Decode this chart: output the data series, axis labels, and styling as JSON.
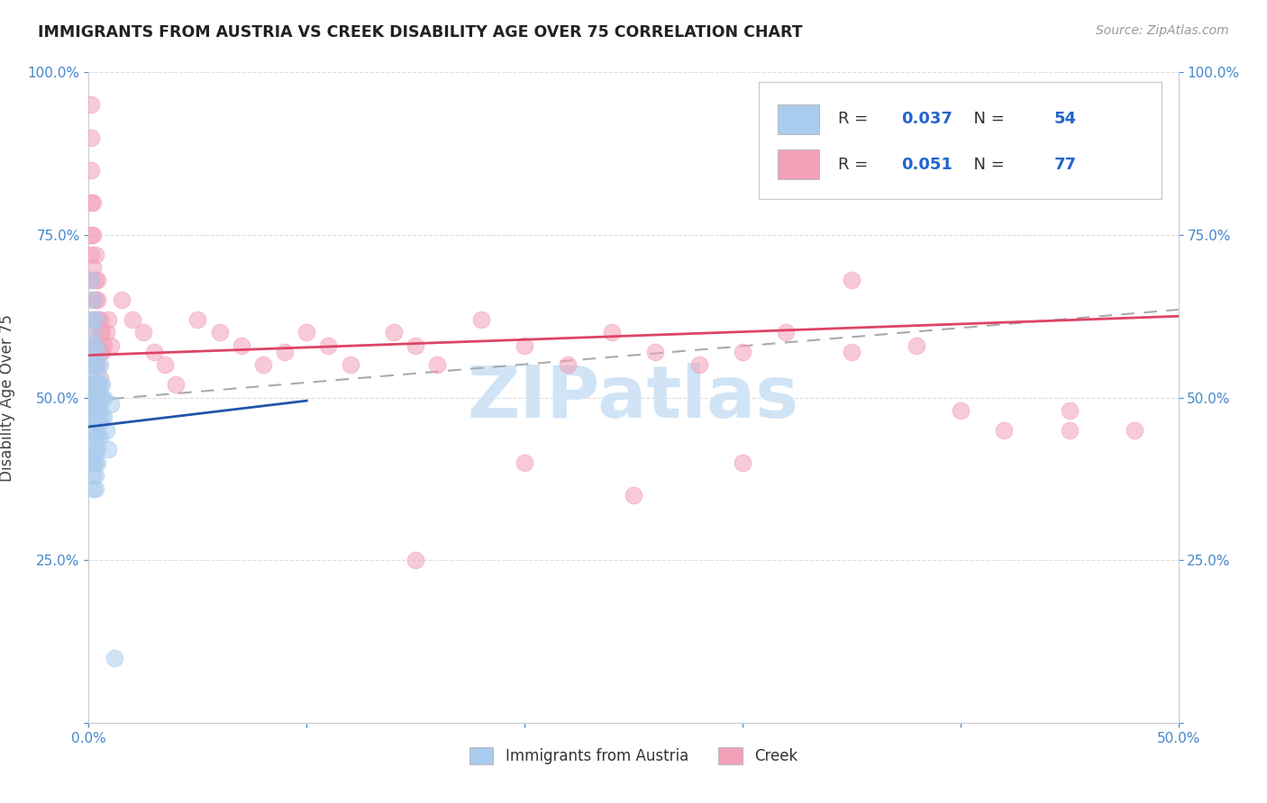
{
  "title": "IMMIGRANTS FROM AUSTRIA VS CREEK DISABILITY AGE OVER 75 CORRELATION CHART",
  "source": "Source: ZipAtlas.com",
  "ylabel": "Disability Age Over 75",
  "xlim": [
    0.0,
    0.5
  ],
  "ylim": [
    0.0,
    1.0
  ],
  "legend_R_blue": "0.037",
  "legend_N_blue": "54",
  "legend_R_pink": "0.051",
  "legend_N_pink": "77",
  "blue_color": "#aaccee",
  "pink_color": "#f4a0b8",
  "blue_line_color": "#2255aa",
  "pink_line_color": "#dd4466",
  "dash_color": "#aaaaaa",
  "watermark": "ZIPatlas",
  "watermark_color": "#d0e4f5",
  "title_color": "#222222",
  "source_color": "#999999",
  "grid_color": "#dddddd",
  "axis_tick_color": "#4488cc",
  "austria_x": [
    0.001,
    0.001,
    0.001,
    0.001,
    0.001,
    0.002,
    0.002,
    0.002,
    0.002,
    0.002,
    0.002,
    0.002,
    0.002,
    0.002,
    0.002,
    0.002,
    0.002,
    0.002,
    0.003,
    0.003,
    0.003,
    0.003,
    0.003,
    0.003,
    0.003,
    0.003,
    0.003,
    0.003,
    0.003,
    0.003,
    0.004,
    0.004,
    0.004,
    0.004,
    0.004,
    0.004,
    0.004,
    0.004,
    0.004,
    0.005,
    0.005,
    0.005,
    0.005,
    0.005,
    0.005,
    0.006,
    0.006,
    0.006,
    0.007,
    0.007,
    0.008,
    0.009,
    0.01,
    0.012
  ],
  "austria_y": [
    0.68,
    0.62,
    0.58,
    0.55,
    0.52,
    0.65,
    0.6,
    0.56,
    0.53,
    0.5,
    0.48,
    0.47,
    0.45,
    0.43,
    0.41,
    0.4,
    0.38,
    0.36,
    0.62,
    0.58,
    0.55,
    0.52,
    0.5,
    0.48,
    0.46,
    0.44,
    0.42,
    0.4,
    0.38,
    0.36,
    0.57,
    0.54,
    0.52,
    0.5,
    0.48,
    0.46,
    0.44,
    0.42,
    0.4,
    0.55,
    0.52,
    0.5,
    0.48,
    0.46,
    0.44,
    0.52,
    0.5,
    0.47,
    0.5,
    0.47,
    0.45,
    0.42,
    0.49,
    0.1
  ],
  "creek_x": [
    0.001,
    0.001,
    0.001,
    0.001,
    0.001,
    0.001,
    0.001,
    0.002,
    0.002,
    0.002,
    0.002,
    0.002,
    0.002,
    0.002,
    0.002,
    0.002,
    0.002,
    0.002,
    0.003,
    0.003,
    0.003,
    0.003,
    0.003,
    0.003,
    0.003,
    0.004,
    0.004,
    0.004,
    0.004,
    0.004,
    0.005,
    0.005,
    0.005,
    0.005,
    0.006,
    0.006,
    0.007,
    0.008,
    0.009,
    0.01,
    0.015,
    0.02,
    0.025,
    0.03,
    0.035,
    0.04,
    0.05,
    0.06,
    0.07,
    0.08,
    0.09,
    0.1,
    0.11,
    0.12,
    0.14,
    0.15,
    0.16,
    0.18,
    0.2,
    0.22,
    0.24,
    0.26,
    0.28,
    0.3,
    0.32,
    0.35,
    0.38,
    0.4,
    0.42,
    0.45,
    0.35,
    0.3,
    0.25,
    0.2,
    0.15,
    0.45,
    0.48
  ],
  "creek_y": [
    0.95,
    0.9,
    0.85,
    0.8,
    0.75,
    0.72,
    0.68,
    0.8,
    0.75,
    0.7,
    0.65,
    0.62,
    0.6,
    0.58,
    0.55,
    0.52,
    0.5,
    0.48,
    0.72,
    0.68,
    0.65,
    0.62,
    0.58,
    0.55,
    0.52,
    0.68,
    0.65,
    0.62,
    0.58,
    0.55,
    0.62,
    0.6,
    0.57,
    0.53,
    0.6,
    0.57,
    0.58,
    0.6,
    0.62,
    0.58,
    0.65,
    0.62,
    0.6,
    0.57,
    0.55,
    0.52,
    0.62,
    0.6,
    0.58,
    0.55,
    0.57,
    0.6,
    0.58,
    0.55,
    0.6,
    0.58,
    0.55,
    0.62,
    0.58,
    0.55,
    0.6,
    0.57,
    0.55,
    0.57,
    0.6,
    0.57,
    0.58,
    0.48,
    0.45,
    0.45,
    0.68,
    0.4,
    0.35,
    0.4,
    0.25,
    0.48,
    0.45
  ],
  "pink_line_x0": 0.0,
  "pink_line_y0": 0.565,
  "pink_line_x1": 0.5,
  "pink_line_y1": 0.625,
  "blue_line_x0": 0.0,
  "blue_line_y0": 0.455,
  "blue_line_x1": 0.1,
  "blue_line_y1": 0.495,
  "dash_line_x0": 0.0,
  "dash_line_y0": 0.495,
  "dash_line_x1": 0.5,
  "dash_line_y1": 0.635
}
